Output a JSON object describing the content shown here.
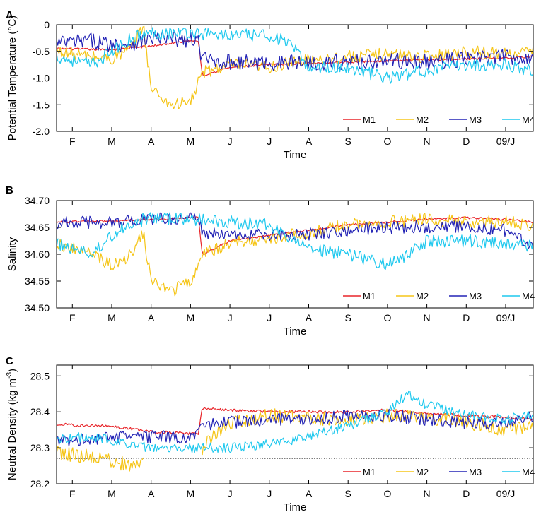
{
  "chart_data": [
    {
      "type": "line",
      "panel_label": "A",
      "xlabel": "Time",
      "ylabel": "Potential Temperature (°C)",
      "ylim": [
        -2.0,
        0.0
      ],
      "yticks": [
        0,
        -0.5,
        -1.0,
        -1.5,
        -2.0
      ],
      "ytick_labels": [
        "0",
        "-0.5",
        "-1.0",
        "-1.5",
        "-2.0"
      ],
      "x_unit": "month index (F = 0)",
      "xlim": [
        -0.4,
        11.7
      ],
      "xticks": [
        0,
        1,
        2,
        3,
        4,
        5,
        6,
        7,
        8,
        9,
        10,
        11
      ],
      "xtick_labels": [
        "F",
        "M",
        "A",
        "M",
        "J",
        "J",
        "A",
        "S",
        "O",
        "N",
        "D",
        "09/J"
      ],
      "legend_position": "bottom-right",
      "series": [
        {
          "name": "M1",
          "color": "#e8252a",
          "noise": 0.02,
          "x": [
            -0.4,
            1,
            2,
            3,
            3.2,
            3.3,
            4,
            5,
            6,
            7,
            8,
            9,
            10,
            11,
            11.7
          ],
          "values": [
            -0.45,
            -0.47,
            -0.4,
            -0.3,
            -0.3,
            -0.95,
            -0.8,
            -0.75,
            -0.72,
            -0.7,
            -0.68,
            -0.66,
            -0.64,
            -0.62,
            -0.6
          ]
        },
        {
          "name": "M2",
          "color": "#f5c518",
          "noise": 0.12,
          "x": [
            -0.4,
            0.5,
            1,
            1.5,
            1.8,
            2,
            2.5,
            3,
            3.3,
            4,
            5,
            6,
            7,
            8,
            9,
            10,
            11,
            11.7
          ],
          "values": [
            -0.5,
            -0.6,
            -0.65,
            -0.45,
            0.0,
            -1.2,
            -1.5,
            -1.45,
            -0.9,
            -0.75,
            -0.8,
            -0.65,
            -0.6,
            -0.55,
            -0.6,
            -0.5,
            -0.55,
            -0.5
          ]
        },
        {
          "name": "M3",
          "color": "#2323b5",
          "noise": 0.15,
          "x": [
            -0.4,
            0.5,
            1,
            1.5,
            2,
            3,
            3.2,
            3.3,
            4,
            5,
            6,
            7,
            8,
            9,
            10,
            11,
            11.7
          ],
          "values": [
            -0.35,
            -0.3,
            -0.38,
            -0.35,
            -0.25,
            -0.3,
            -0.32,
            -0.65,
            -0.7,
            -0.72,
            -0.7,
            -0.7,
            -0.68,
            -0.7,
            -0.65,
            -0.6,
            -0.62
          ]
        },
        {
          "name": "M4",
          "color": "#1ec8ee",
          "noise": 0.12,
          "x": [
            -0.4,
            0.5,
            1,
            1.5,
            2,
            3,
            4,
            5,
            5.5,
            6,
            7,
            8,
            9,
            10,
            11,
            11.7
          ],
          "values": [
            -0.6,
            -0.75,
            -0.5,
            -0.25,
            -0.15,
            -0.15,
            -0.2,
            -0.2,
            -0.35,
            -0.8,
            -0.8,
            -1.0,
            -0.85,
            -0.75,
            -0.75,
            -0.85
          ]
        }
      ]
    },
    {
      "type": "line",
      "panel_label": "B",
      "xlabel": "Time",
      "ylabel": "Salinity",
      "ylim": [
        34.5,
        34.7
      ],
      "yticks": [
        34.5,
        34.55,
        34.6,
        34.65,
        34.7
      ],
      "ytick_labels": [
        "34.50",
        "34.55",
        "34.60",
        "34.65",
        "34.70"
      ],
      "x_unit": "month index (F = 0)",
      "xlim": [
        -0.4,
        11.7
      ],
      "xticks": [
        0,
        1,
        2,
        3,
        4,
        5,
        6,
        7,
        8,
        9,
        10,
        11
      ],
      "xtick_labels": [
        "F",
        "M",
        "A",
        "M",
        "J",
        "J",
        "A",
        "S",
        "O",
        "N",
        "D",
        "09/J"
      ],
      "legend_position": "bottom-right",
      "series": [
        {
          "name": "M1",
          "color": "#e8252a",
          "noise": 0.002,
          "x": [
            -0.4,
            1,
            2,
            3,
            3.2,
            3.3,
            4,
            5,
            6,
            7,
            8,
            9,
            10,
            11,
            11.7
          ],
          "values": [
            34.66,
            34.662,
            34.665,
            34.668,
            34.668,
            34.6,
            34.625,
            34.635,
            34.645,
            34.655,
            34.66,
            34.665,
            34.668,
            34.665,
            34.66
          ]
        },
        {
          "name": "M2",
          "color": "#f5c518",
          "noise": 0.012,
          "x": [
            -0.4,
            0.5,
            1,
            1.5,
            1.8,
            2,
            2.5,
            3,
            3.3,
            4,
            5,
            6,
            7,
            8,
            9,
            10,
            11,
            11.7
          ],
          "values": [
            34.62,
            34.6,
            34.58,
            34.6,
            34.64,
            34.55,
            34.53,
            34.55,
            34.6,
            34.62,
            34.63,
            34.64,
            34.655,
            34.66,
            34.665,
            34.66,
            34.66,
            34.655
          ]
        },
        {
          "name": "M3",
          "color": "#2323b5",
          "noise": 0.012,
          "x": [
            -0.4,
            1,
            2,
            3,
            3.2,
            3.3,
            4,
            5,
            6,
            7,
            8,
            9,
            10,
            11,
            11.7
          ],
          "values": [
            34.658,
            34.66,
            34.665,
            34.668,
            34.668,
            34.64,
            34.635,
            34.635,
            34.638,
            34.645,
            34.65,
            34.652,
            34.65,
            34.645,
            34.61
          ]
        },
        {
          "name": "M4",
          "color": "#1ec8ee",
          "noise": 0.012,
          "x": [
            -0.4,
            0.5,
            1,
            1.5,
            2,
            3,
            4,
            5,
            5.5,
            6,
            7,
            8,
            8.5,
            9,
            10,
            11,
            11.7
          ],
          "values": [
            34.62,
            34.6,
            34.635,
            34.66,
            34.667,
            34.665,
            34.66,
            34.655,
            34.63,
            34.61,
            34.6,
            34.58,
            34.6,
            34.625,
            34.625,
            34.62,
            34.615
          ]
        }
      ]
    },
    {
      "type": "line",
      "panel_label": "C",
      "xlabel": "Time",
      "ylabel": "Neutral Density (kg m",
      "ylabel_superscript": "-3",
      "ylabel_suffix": ")",
      "ylim": [
        28.2,
        28.53
      ],
      "yticks": [
        28.2,
        28.3,
        28.4,
        28.5
      ],
      "ytick_labels": [
        "28.2",
        "28.3",
        "28.4",
        "28.5"
      ],
      "reference_line": 28.27,
      "x_unit": "month index (F = 0)",
      "xlim": [
        -0.4,
        11.7
      ],
      "xticks": [
        0,
        1,
        2,
        3,
        4,
        5,
        6,
        7,
        8,
        9,
        10,
        11
      ],
      "xtick_labels": [
        "F",
        "M",
        "A",
        "M",
        "J",
        "J",
        "A",
        "S",
        "O",
        "N",
        "D",
        "09/J"
      ],
      "legend_position": "bottom-right",
      "series": [
        {
          "name": "M1",
          "color": "#e8252a",
          "noise": 0.004,
          "x": [
            -0.4,
            1,
            2,
            3,
            3.2,
            3.3,
            4,
            5,
            6,
            7,
            8,
            9,
            10,
            11,
            11.7
          ],
          "values": [
            28.365,
            28.36,
            28.345,
            28.34,
            28.34,
            28.41,
            28.405,
            28.4,
            28.4,
            28.4,
            28.405,
            28.395,
            28.39,
            28.385,
            28.38
          ]
        },
        {
          "name": "M2",
          "color": "#f5c518",
          "noise": 0.02,
          "segments": [
            [
              -0.4,
              1.8
            ],
            [
              3.3,
              11.7
            ]
          ],
          "x": [
            -0.4,
            0.5,
            1,
            1.5,
            1.8,
            3.3,
            4,
            5,
            6,
            7,
            8,
            9,
            10,
            11,
            11.7
          ],
          "values": [
            28.285,
            28.275,
            28.265,
            28.25,
            28.26,
            28.3,
            28.37,
            28.39,
            28.38,
            28.38,
            28.39,
            28.385,
            28.37,
            28.35,
            28.36
          ]
        },
        {
          "name": "M3",
          "color": "#2323b5",
          "noise": 0.018,
          "x": [
            -0.4,
            1,
            2,
            3,
            3.2,
            3.3,
            4,
            5,
            6,
            7,
            8,
            9,
            10,
            11,
            11.7
          ],
          "values": [
            28.32,
            28.33,
            28.33,
            28.33,
            28.335,
            28.36,
            28.37,
            28.38,
            28.38,
            28.39,
            28.39,
            28.38,
            28.37,
            28.37,
            28.39
          ]
        },
        {
          "name": "M4",
          "color": "#1ec8ee",
          "noise": 0.014,
          "x": [
            -0.4,
            0.5,
            1,
            2,
            3,
            4,
            5,
            6,
            7,
            8,
            8.5,
            9,
            10,
            11,
            11.7
          ],
          "values": [
            28.325,
            28.33,
            28.32,
            28.3,
            28.3,
            28.3,
            28.31,
            28.33,
            28.36,
            28.4,
            28.45,
            28.42,
            28.39,
            28.38,
            28.39
          ]
        }
      ]
    }
  ]
}
